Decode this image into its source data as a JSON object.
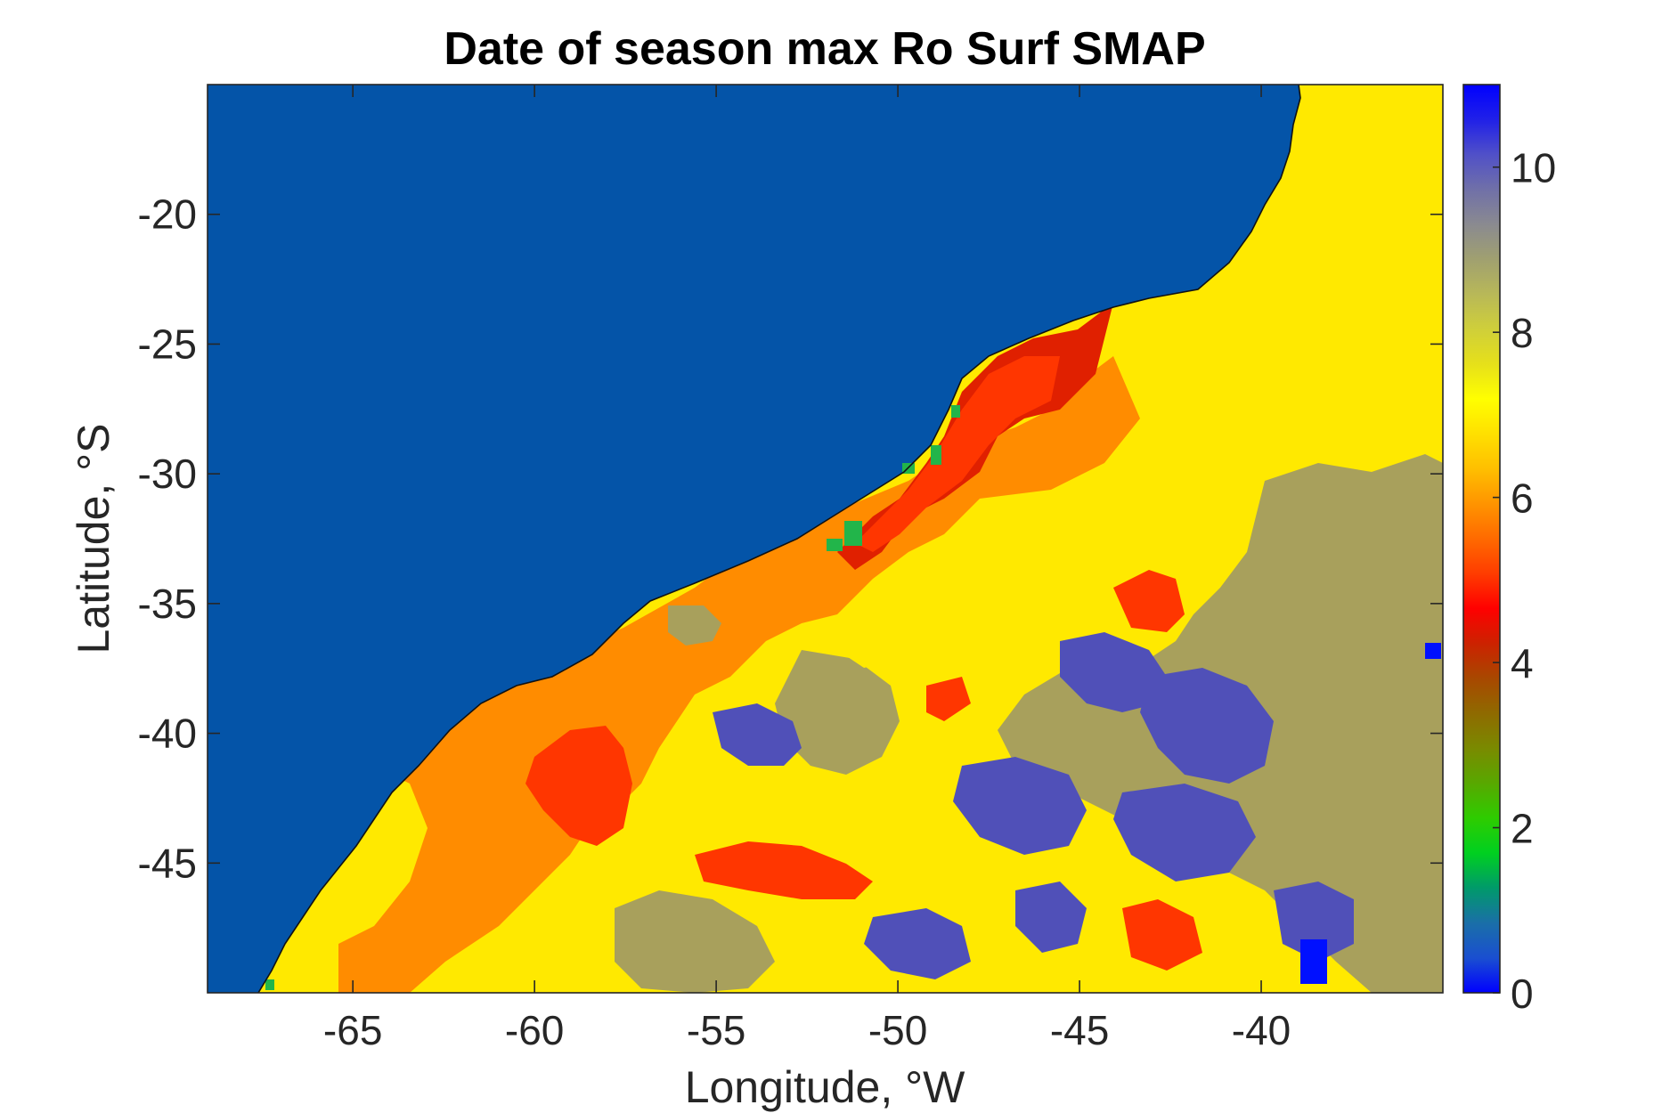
{
  "chart_data": {
    "type": "heatmap",
    "title": "Date of season max Ro Surf SMAP",
    "xlabel": "Longitude, °W",
    "ylabel": "Latitude, °S",
    "xlim": [
      -69,
      -35
    ],
    "ylim": [
      -50,
      -15
    ],
    "x_ticks": [
      -65,
      -60,
      -55,
      -50,
      -45,
      -40
    ],
    "x_tick_labels": [
      "-65",
      "-60",
      "-55",
      "-50",
      "-45",
      "-40"
    ],
    "y_ticks": [
      -20,
      -25,
      -30,
      -35,
      -40,
      -45
    ],
    "y_tick_labels": [
      "-20",
      "-25",
      "-30",
      "-35",
      "-40",
      "-45"
    ],
    "colorbar": {
      "range": [
        0,
        11
      ],
      "ticks": [
        0,
        2,
        4,
        6,
        8,
        10
      ],
      "tick_labels": [
        "0",
        "2",
        "4",
        "6",
        "8",
        "10"
      ],
      "colors": [
        "#0000ff",
        "#1a4fd0",
        "#1a6fa8",
        "#009a6a",
        "#00d020",
        "#2ecc00",
        "#58a800",
        "#7a8a00",
        "#8f6a00",
        "#a84800",
        "#cc2200",
        "#ff0000",
        "#ff3c00",
        "#ff6a00",
        "#ff9400",
        "#ffbf00",
        "#ffe000",
        "#ffff00",
        "#e6e01a",
        "#cfcf3a",
        "#b8b858",
        "#a0a070",
        "#8a8a90",
        "#7070a8",
        "#5050c8",
        "#2020e8",
        "#0000ff"
      ]
    },
    "land_color": "#0454a8",
    "category_colors": {
      "orange": "#ff8c00",
      "yellow": "#ffe900",
      "red": "#ff3600",
      "dark_red": "#e02000",
      "olive": "#a8a05c",
      "slate_blue": "#5050b8",
      "green": "#22b54a",
      "blue": "#0010ff"
    }
  }
}
